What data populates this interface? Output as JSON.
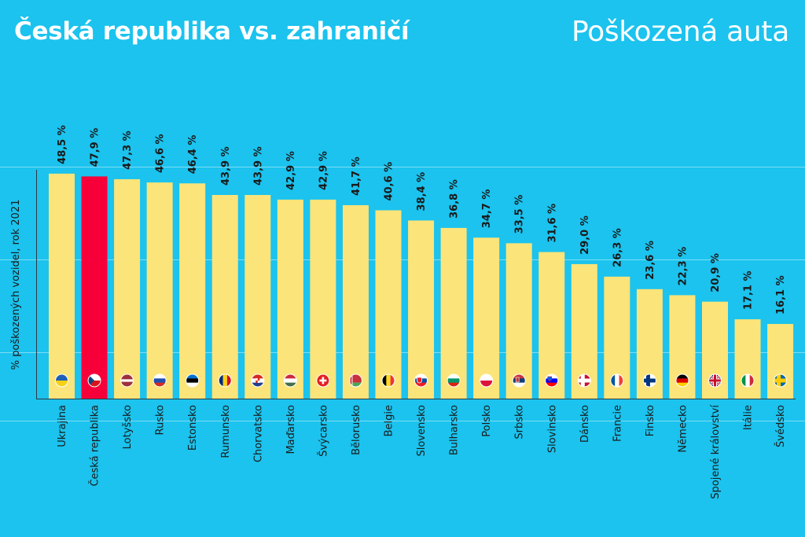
{
  "title": "Česká republika vs. zahraničí",
  "subtitle": "Poškozená auta",
  "colors": {
    "background": "#1bc3ee",
    "bar": "#fbe47a",
    "highlight_bar": "#f7003a",
    "gridline": "#7fdcf5",
    "text": "#1a1a1a"
  },
  "chart_data": {
    "type": "bar",
    "title": "",
    "xlabel": "",
    "ylabel": "% poškozených vozidel, rok 2021",
    "ylim": [
      0,
      60
    ],
    "grid": true,
    "categories": [
      "Ukrajina",
      "Česká republika",
      "Lotyšsko",
      "Rusko",
      "Estonsko",
      "Rumunsko",
      "Chorvatsko",
      "Maďarsko",
      "Švýcarsko",
      "Bělorusko",
      "Belgie",
      "Slovensko",
      "Bulharsko",
      "Polsko",
      "Srbsko",
      "Slovinsko",
      "Dánsko",
      "Francie",
      "Finsko",
      "Německo",
      "Spojené království",
      "Itálie",
      "Švédsko"
    ],
    "values": [
      48.5,
      47.9,
      47.3,
      46.6,
      46.4,
      43.9,
      43.9,
      42.9,
      42.9,
      41.7,
      40.6,
      38.4,
      36.8,
      34.7,
      33.5,
      31.6,
      29.0,
      26.3,
      23.6,
      22.3,
      20.9,
      17.1,
      16.1
    ],
    "value_labels": [
      "48,5 %",
      "47,9 %",
      "47,3 %",
      "46,6 %",
      "46,4 %",
      "43,9 %",
      "43,9 %",
      "42,9 %",
      "42,9 %",
      "41,7 %",
      "40,6 %",
      "38,4 %",
      "36,8 %",
      "34,7 %",
      "33,5 %",
      "31,6 %",
      "29,0 %",
      "26,3 %",
      "23,6 %",
      "22,3 %",
      "20,9 %",
      "17,1 %",
      "16,1 %"
    ],
    "highlight": "Česká republika",
    "flags": [
      "flag-ukraine-icon",
      "flag-czech-republic-icon",
      "flag-latvia-icon",
      "flag-russia-icon",
      "flag-estonia-icon",
      "flag-romania-icon",
      "flag-croatia-icon",
      "flag-hungary-icon",
      "flag-switzerland-icon",
      "flag-belarus-icon",
      "flag-belgium-icon",
      "flag-slovakia-icon",
      "flag-bulgaria-icon",
      "flag-poland-icon",
      "flag-serbia-icon",
      "flag-slovenia-icon",
      "flag-denmark-icon",
      "flag-france-icon",
      "flag-finland-icon",
      "flag-germany-icon",
      "flag-united-kingdom-icon",
      "flag-italy-icon",
      "flag-sweden-icon"
    ]
  }
}
